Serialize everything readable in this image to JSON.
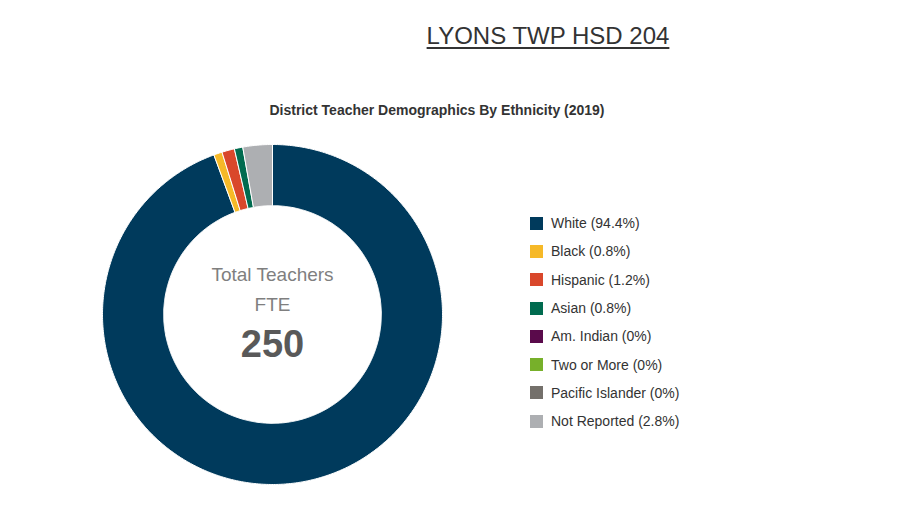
{
  "chart_data": {
    "type": "donut",
    "header": "LYONS TWP HSD 204",
    "title": "District Teacher Demographics By Ethnicity (2019)",
    "categories": [
      "White (94.4%)",
      "Black (0.8%)",
      "Hispanic (1.2%)",
      "Asian (0.8%)",
      "Am. Indian (0%)",
      "Two or More (0%)",
      "Pacific Islander (0%)",
      "Not Reported (2.8%)"
    ],
    "values": [
      94.4,
      0.8,
      1.2,
      0.8,
      0,
      0,
      0,
      2.8
    ],
    "colors": [
      "#003a5c",
      "#f6b928",
      "#d9472b",
      "#006b4f",
      "#5a0a4b",
      "#77b02a",
      "#74706b",
      "#adafb2"
    ],
    "center_lines": [
      "Total Teachers",
      "FTE"
    ],
    "center_value": 250,
    "legend": "right"
  }
}
